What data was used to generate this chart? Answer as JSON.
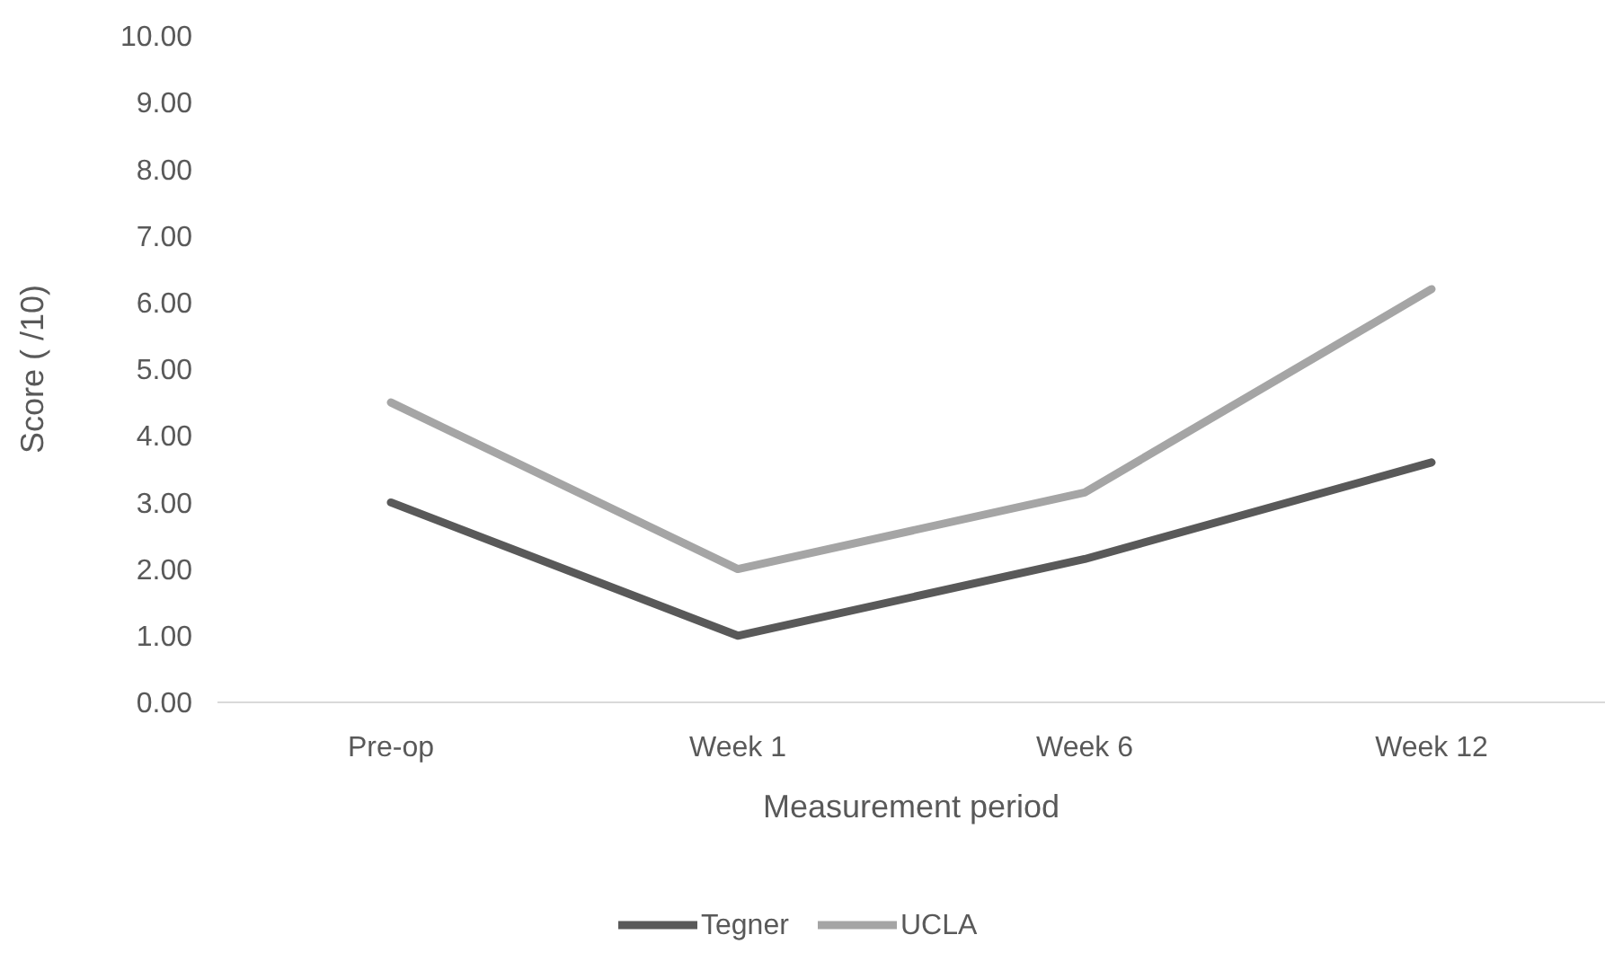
{
  "chart_data": {
    "type": "line",
    "xlabel": "Measurement period",
    "ylabel": "Score ( /10)",
    "categories": [
      "Pre-op",
      "Week 1",
      "Week 6",
      "Week 12"
    ],
    "series": [
      {
        "name": "Tegner",
        "color": "#595959",
        "values": [
          3.0,
          1.0,
          2.15,
          3.6
        ]
      },
      {
        "name": "UCLA",
        "color": "#a5a5a5",
        "values": [
          4.5,
          2.0,
          3.15,
          6.2
        ]
      }
    ],
    "ylim": [
      0,
      10
    ],
    "yticks": [
      {
        "value": 0,
        "label": "0.00"
      },
      {
        "value": 1,
        "label": "1.00"
      },
      {
        "value": 2,
        "label": "2.00"
      },
      {
        "value": 3,
        "label": "3.00"
      },
      {
        "value": 4,
        "label": "4.00"
      },
      {
        "value": 5,
        "label": "5.00"
      },
      {
        "value": 6,
        "label": "6.00"
      },
      {
        "value": 7,
        "label": "7.00"
      },
      {
        "value": 8,
        "label": "8.00"
      },
      {
        "value": 9,
        "label": "9.00"
      },
      {
        "value": 10,
        "label": "10.00"
      }
    ],
    "grid": false,
    "legend": "bottom",
    "marker": "none",
    "line_style": "solid"
  }
}
